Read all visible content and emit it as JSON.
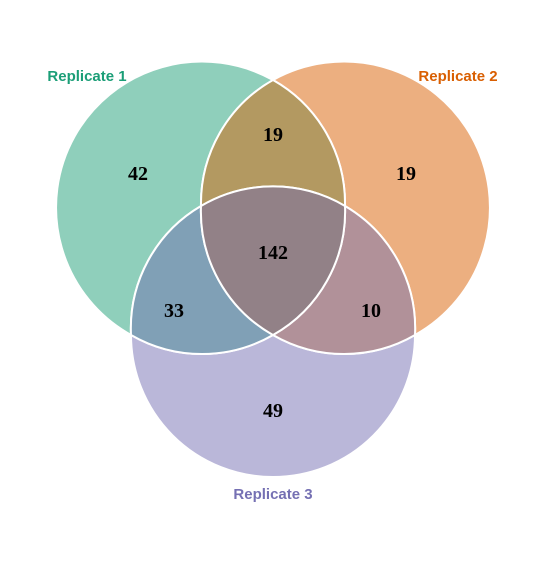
{
  "sets": [
    {
      "id": "A",
      "label": "Replicate 1",
      "color": "#1b9e77",
      "fill": "#8fcfbb"
    },
    {
      "id": "B",
      "label": "Replicate 2",
      "color": "#d95f02",
      "fill": "#ecaf80"
    },
    {
      "id": "C",
      "label": "Replicate 3",
      "color": "#7570b3",
      "fill": "#bab7d9"
    }
  ],
  "regions": [
    {
      "id": "A_only",
      "sets": [
        "A"
      ],
      "count": "42",
      "fill": "#8fcfbb"
    },
    {
      "id": "B_only",
      "sets": [
        "B"
      ],
      "count": "19",
      "fill": "#ecaf80"
    },
    {
      "id": "C_only",
      "sets": [
        "C"
      ],
      "count": "49",
      "fill": "#bab7d9"
    },
    {
      "id": "AB",
      "sets": [
        "A",
        "B"
      ],
      "count": "19",
      "fill": "#b39961"
    },
    {
      "id": "AC",
      "sets": [
        "A",
        "C"
      ],
      "count": "33",
      "fill": "#80a0b6"
    },
    {
      "id": "BC",
      "sets": [
        "B",
        "C"
      ],
      "count": "10",
      "fill": "#b19199"
    },
    {
      "id": "ABC",
      "sets": [
        "A",
        "B",
        "C"
      ],
      "count": "142",
      "fill": "#928187"
    }
  ]
}
